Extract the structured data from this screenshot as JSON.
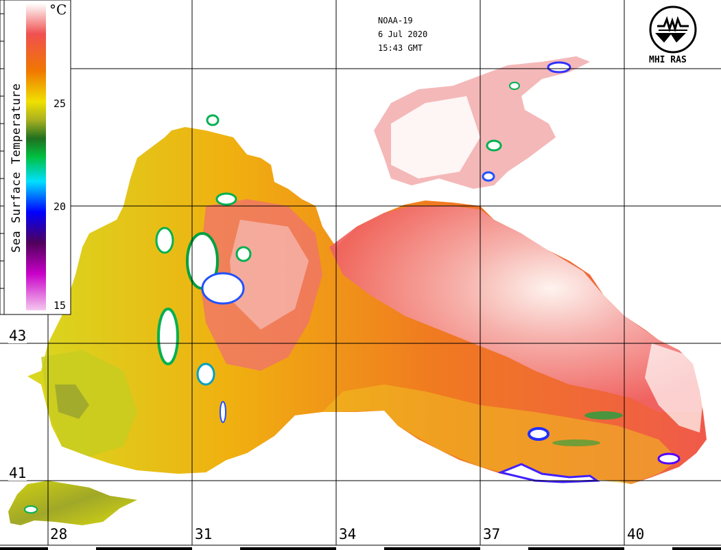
{
  "header": {
    "satellite": "NOAA-19",
    "date": "6 Jul 2020",
    "time": "15:43 GMT"
  },
  "organization": {
    "name": "MHI RAS"
  },
  "legend": {
    "title": "Sea Surface Temperature",
    "unit": "°C",
    "ticks": [
      "25",
      "20",
      "15"
    ],
    "colors": {
      "t15": "#f6c8f0",
      "t17": "#c800c8",
      "t18": "#50005a",
      "t19": "#0000ff",
      "t21": "#00e0ff",
      "t23": "#00c040",
      "t24": "#207020",
      "t25": "#a8b020",
      "t26": "#f0e000",
      "t27": "#f07800",
      "t28": "#f05050",
      "t29": "#ffffff"
    }
  },
  "grid": {
    "longitudes": [
      "28",
      "31",
      "34",
      "37",
      "40"
    ],
    "latitudes": [
      "43",
      "41"
    ]
  }
}
